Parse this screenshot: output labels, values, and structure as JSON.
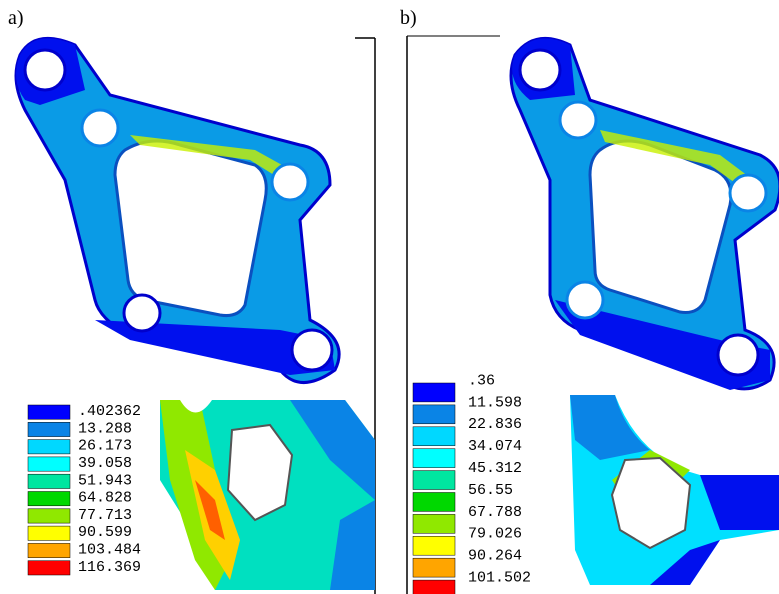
{
  "panels": [
    {
      "label": "a)",
      "legend": [
        {
          "label": ".402362",
          "color": "#0000ff"
        },
        {
          "label": "13.288",
          "color": "#0a84e6"
        },
        {
          "label": "26.173",
          "color": "#00d8ff"
        },
        {
          "label": "39.058",
          "color": "#00ffff"
        },
        {
          "label": "51.943",
          "color": "#00e6a0"
        },
        {
          "label": "64.828",
          "color": "#00d800"
        },
        {
          "label": "77.713",
          "color": "#90e800"
        },
        {
          "label": "90.599",
          "color": "#ffff00"
        },
        {
          "label": "103.484",
          "color": "#ffa500"
        },
        {
          "label": "116.369",
          "color": "#ff0000"
        }
      ]
    },
    {
      "label": "b)",
      "legend": [
        {
          "label": ".36",
          "color": "#0000ff"
        },
        {
          "label": "11.598",
          "color": "#0a84e6"
        },
        {
          "label": "22.836",
          "color": "#00d8ff"
        },
        {
          "label": "34.074",
          "color": "#00ffff"
        },
        {
          "label": "45.312",
          "color": "#00e6a0"
        },
        {
          "label": "56.55",
          "color": "#00d800"
        },
        {
          "label": "67.788",
          "color": "#90e800"
        },
        {
          "label": "79.026",
          "color": "#ffff00"
        },
        {
          "label": "90.264",
          "color": "#ffa500"
        },
        {
          "label": "101.502",
          "color": "#ff0000"
        }
      ]
    }
  ]
}
